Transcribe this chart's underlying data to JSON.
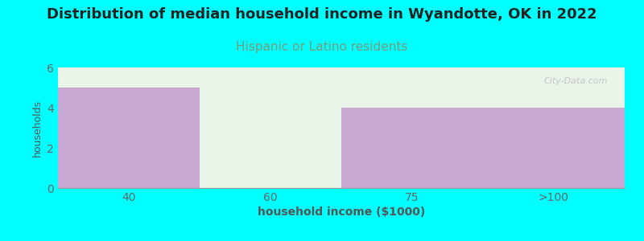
{
  "title": "Distribution of median household income in Wyandotte, OK in 2022",
  "subtitle": "Hispanic or Latino residents",
  "xlabel": "household income ($1000)",
  "ylabel": "households",
  "categories": [
    "40",
    "60",
    "75",
    ">100"
  ],
  "values": [
    5,
    0.05,
    4,
    4
  ],
  "bar_colors": [
    "#c9a8d4",
    "#e8f5e2",
    "#c9a8d4",
    "#c9a8d4"
  ],
  "background_color": "#00ffff",
  "plot_bg_top": "#eaf5ea",
  "plot_bg_bottom": "#f8fff8",
  "ylim": [
    0,
    6
  ],
  "yticks": [
    0,
    2,
    4,
    6
  ],
  "title_fontsize": 13,
  "title_color": "#222222",
  "subtitle_fontsize": 11,
  "subtitle_color": "#7a9a7a",
  "axis_label_color": "#555555",
  "tick_label_color": "#666666",
  "watermark": "City-Data.com"
}
